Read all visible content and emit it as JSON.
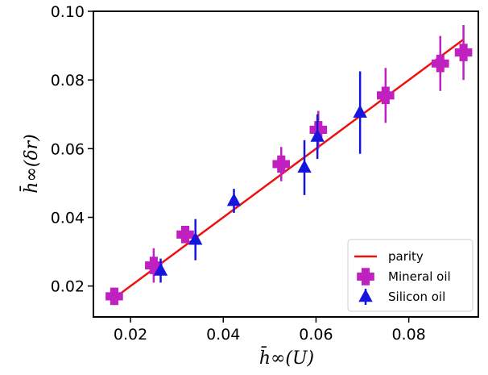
{
  "chart_data": {
    "type": "scatter",
    "xlabel": "h̄∞(U)",
    "ylabel": "h̄∞(δr)",
    "xlim": [
      0.012,
      0.095
    ],
    "ylim": [
      0.011,
      0.1
    ],
    "xticks": [
      0.02,
      0.04,
      0.06,
      0.08
    ],
    "xtick_labels": [
      "0.02",
      "0.04",
      "0.06",
      "0.08"
    ],
    "yticks": [
      0.02,
      0.04,
      0.06,
      0.08,
      0.1
    ],
    "ytick_labels": [
      "0.02",
      "0.04",
      "0.06",
      "0.08",
      "0.10"
    ],
    "grid": false,
    "legend_position": "bottom-right",
    "parity": {
      "name": "parity",
      "color": "#ee1111",
      "x": [
        0.0165,
        0.0917
      ],
      "y": [
        0.0165,
        0.0917
      ]
    },
    "series": [
      {
        "name": "Mineral oil",
        "marker": "plus-filled",
        "color": "#c020c0",
        "points": [
          {
            "x": 0.0165,
            "y": 0.017,
            "err": 0.001
          },
          {
            "x": 0.025,
            "y": 0.026,
            "err": 0.005
          },
          {
            "x": 0.0318,
            "y": 0.035,
            "err": 0.0025
          },
          {
            "x": 0.0525,
            "y": 0.0555,
            "err": 0.005
          },
          {
            "x": 0.0605,
            "y": 0.0655,
            "err": 0.0055
          },
          {
            "x": 0.075,
            "y": 0.0755,
            "err": 0.008
          },
          {
            "x": 0.0868,
            "y": 0.0848,
            "err": 0.008
          },
          {
            "x": 0.0918,
            "y": 0.088,
            "err": 0.008
          }
        ]
      },
      {
        "name": "Silicon oil",
        "marker": "triangle-up",
        "color": "#1515dd",
        "points": [
          {
            "x": 0.0265,
            "y": 0.0245,
            "err": 0.0035
          },
          {
            "x": 0.034,
            "y": 0.0335,
            "err": 0.006
          },
          {
            "x": 0.0423,
            "y": 0.0448,
            "err": 0.0035
          },
          {
            "x": 0.0575,
            "y": 0.0545,
            "err": 0.008
          },
          {
            "x": 0.0603,
            "y": 0.0635,
            "err": 0.0065
          },
          {
            "x": 0.0695,
            "y": 0.0705,
            "err": 0.012
          }
        ]
      }
    ]
  }
}
